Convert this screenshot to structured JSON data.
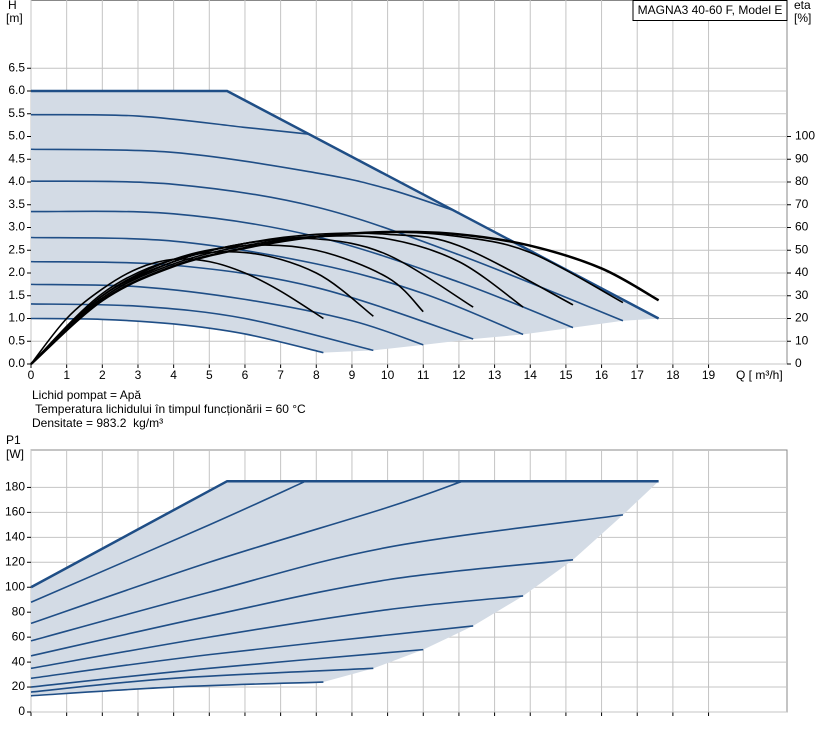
{
  "chart_data": [
    {
      "type": "line",
      "title": "MAGNA3 40-60 F, Model E",
      "y_label": "H",
      "y_unit": "[m]",
      "y2_label": "eta",
      "y2_unit": "[%]",
      "x_label": "Q [ m³/h]",
      "notes": [
        "Lichid pompat = Apă",
        " Temperatura lichidului în timpul funcționării = 60 °C",
        "Densitate = 983.2  kg/m³"
      ],
      "xlim": [
        0,
        21.2
      ],
      "ylim": [
        0,
        8
      ],
      "y2lim": [
        0,
        160
      ],
      "xticks": [
        0,
        1,
        2,
        3,
        4,
        5,
        6,
        7,
        8,
        9,
        10,
        11,
        12,
        13,
        14,
        15,
        16,
        17,
        18,
        19
      ],
      "yticks": [
        {
          "value": 0,
          "label": "0.0"
        },
        0.5,
        {
          "value": 1,
          "label": "1.0"
        },
        1.5,
        {
          "value": 2,
          "label": "2.0"
        },
        2.5,
        {
          "value": 3,
          "label": "3.0"
        },
        3.5,
        {
          "value": 4,
          "label": "4.0"
        },
        4.5,
        {
          "value": 5,
          "label": "5.0"
        },
        5.5,
        {
          "value": 6,
          "label": "6.0"
        },
        6.5
      ],
      "y2ticks": [
        0,
        10,
        20,
        30,
        40,
        50,
        60,
        70,
        80,
        90,
        100
      ],
      "grid": true,
      "area_color": "#d3dbe5",
      "series": [
        {
          "color": "#1f4e86",
          "x": [
            0,
            5.5,
            17.6
          ],
          "values": [
            6.0,
            6.0,
            1.0
          ]
        },
        {
          "color": "#1f4e86",
          "x": [
            0,
            2,
            4,
            6,
            8.2
          ],
          "values": [
            1.0,
            0.98,
            0.88,
            0.66,
            0.25
          ]
        },
        {
          "color": "#1f4e86",
          "x": [
            0,
            3,
            6,
            9.6
          ],
          "values": [
            1.32,
            1.27,
            1.0,
            0.3
          ]
        },
        {
          "color": "#1f4e86",
          "x": [
            0,
            3,
            6,
            9,
            11
          ],
          "values": [
            1.75,
            1.7,
            1.42,
            0.95,
            0.42
          ]
        },
        {
          "color": "#1f4e86",
          "x": [
            0,
            4,
            8,
            12.4
          ],
          "values": [
            2.25,
            2.17,
            1.68,
            0.55
          ]
        },
        {
          "color": "#1f4e86",
          "x": [
            0,
            4,
            8,
            11,
            13.8
          ],
          "values": [
            2.78,
            2.7,
            2.2,
            1.55,
            0.65
          ]
        },
        {
          "color": "#1f4e86",
          "x": [
            0,
            4,
            8,
            12,
            15.2
          ],
          "values": [
            3.35,
            3.3,
            2.8,
            1.8,
            0.8
          ]
        },
        {
          "color": "#1f4e86",
          "x": [
            0,
            4,
            8,
            12,
            16.6
          ],
          "values": [
            4.02,
            3.95,
            3.45,
            2.4,
            0.95
          ]
        },
        {
          "color": "#1f4e86",
          "x": [
            0,
            4,
            8,
            10,
            11.9
          ],
          "values": [
            4.72,
            4.65,
            4.2,
            3.85,
            3.36
          ]
        },
        {
          "color": "#1f4e86",
          "x": [
            0,
            3,
            6,
            7.8
          ],
          "values": [
            5.48,
            5.45,
            5.2,
            5.05
          ]
        },
        {
          "color": "#000000",
          "axis": "y2",
          "x": [
            0,
            1,
            2,
            3,
            4,
            5,
            6,
            7,
            8.2
          ],
          "values": [
            0,
            20,
            33,
            42,
            46,
            45,
            40,
            32,
            20
          ]
        },
        {
          "color": "#000000",
          "axis": "y2",
          "x": [
            0,
            2,
            4,
            6,
            8,
            9.6
          ],
          "values": [
            0,
            31,
            46,
            49,
            40,
            21
          ]
        },
        {
          "color": "#000000",
          "axis": "y2",
          "x": [
            0,
            2,
            4,
            6,
            8,
            10,
            11
          ],
          "values": [
            0,
            30,
            46,
            52,
            50,
            38,
            23
          ]
        },
        {
          "color": "#000000",
          "axis": "y2",
          "x": [
            0,
            2,
            4,
            6,
            8,
            10,
            12.4
          ],
          "values": [
            0,
            30,
            45,
            53,
            55,
            48,
            25
          ]
        },
        {
          "color": "#000000",
          "axis": "y2",
          "x": [
            0,
            2,
            4,
            6,
            8,
            10,
            12,
            13.8
          ],
          "values": [
            0,
            30,
            45,
            53,
            56,
            55,
            45,
            25
          ]
        },
        {
          "color": "#000000",
          "axis": "y2",
          "x": [
            0,
            2,
            4,
            6,
            8,
            10,
            12,
            15.2
          ],
          "values": [
            0,
            29,
            45,
            53,
            57,
            57,
            52,
            26
          ]
        },
        {
          "color": "#000000",
          "axis": "y2",
          "x": [
            0,
            2,
            4,
            6,
            8,
            10,
            12,
            14,
            16.6
          ],
          "values": [
            0,
            29,
            44,
            52,
            56,
            58,
            56,
            49,
            27
          ]
        },
        {
          "color": "#000000",
          "axis": "y2",
          "x": [
            0,
            2,
            4,
            6,
            8,
            10,
            12,
            14,
            16,
            17.6
          ],
          "values": [
            0,
            28,
            43,
            51,
            56,
            58,
            57,
            52,
            42,
            28
          ]
        }
      ]
    },
    {
      "type": "line",
      "y_label": "P1",
      "y_unit": "[W]",
      "xlim": [
        0,
        21.2
      ],
      "ylim": [
        0,
        210
      ],
      "yticks": [
        0,
        20,
        40,
        60,
        80,
        100,
        120,
        140,
        160,
        180
      ],
      "grid": true,
      "area_color": "#d3dbe5",
      "series": [
        {
          "color": "#1f4e86",
          "x": [
            0,
            5.5,
            17.6
          ],
          "values": [
            100,
            185,
            185
          ]
        },
        {
          "color": "#1f4e86",
          "x": [
            0,
            4,
            8.2
          ],
          "values": [
            13,
            20,
            24
          ]
        },
        {
          "color": "#1f4e86",
          "x": [
            0,
            4,
            9.6
          ],
          "values": [
            16,
            27,
            35
          ]
        },
        {
          "color": "#1f4e86",
          "x": [
            0,
            5,
            11
          ],
          "values": [
            20,
            35,
            50
          ]
        },
        {
          "color": "#1f4e86",
          "x": [
            0,
            5,
            12.4
          ],
          "values": [
            27,
            46,
            69
          ]
        },
        {
          "color": "#1f4e86",
          "x": [
            0,
            5,
            10,
            13.8
          ],
          "values": [
            35,
            60,
            82,
            93
          ]
        },
        {
          "color": "#1f4e86",
          "x": [
            0,
            5,
            10,
            15.2
          ],
          "values": [
            45,
            77,
            106,
            122
          ]
        },
        {
          "color": "#1f4e86",
          "x": [
            0,
            5,
            10,
            16.6
          ],
          "values": [
            57,
            96,
            132,
            158
          ]
        },
        {
          "color": "#1f4e86",
          "x": [
            0,
            5,
            10,
            12.1
          ],
          "values": [
            71,
            120,
            164,
            185
          ]
        },
        {
          "color": "#1f4e86",
          "x": [
            0,
            5,
            7.7
          ],
          "values": [
            88,
            150,
            185
          ]
        }
      ]
    }
  ]
}
